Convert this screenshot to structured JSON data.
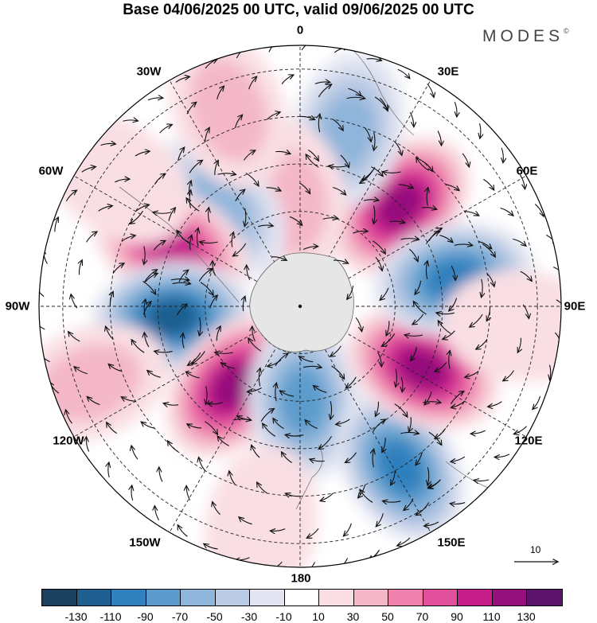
{
  "title": "Base 04/06/2025 00 UTC, valid 09/06/2025 00 UTC",
  "brand": {
    "name": "MODES",
    "mark": "©"
  },
  "longitude_labels": [
    "0",
    "30E",
    "60E",
    "90E",
    "120E",
    "150E",
    "180",
    "150W",
    "120W",
    "90W",
    "60W",
    "30W"
  ],
  "reference_vector": {
    "label": "10"
  },
  "colorbar": {
    "colors": [
      "#1b3f5e",
      "#1f5f8f",
      "#2f80bd",
      "#5b9ccc",
      "#8fb5da",
      "#bccbe4",
      "#e2e5f1",
      "#ffffff",
      "#f9dfe4",
      "#f4b7c7",
      "#ee82ad",
      "#e2509c",
      "#c71e8c",
      "#94117c",
      "#5b136b"
    ],
    "tick_labels": [
      "-130",
      "-110",
      "-90",
      "-70",
      "-50",
      "-30",
      "-10",
      "10",
      "30",
      "50",
      "70",
      "90",
      "110",
      "130"
    ]
  },
  "anomaly_field": {
    "units_shown": "none",
    "centers": [
      {
        "lon": 45,
        "colat": 30,
        "value": 120
      },
      {
        "lon": 15,
        "colat": 38,
        "value": -70
      },
      {
        "lon": 355,
        "colat": 22,
        "value": 45
      },
      {
        "lon": 320,
        "colat": 27,
        "value": -70
      },
      {
        "lon": 295,
        "colat": 30,
        "value": 110
      },
      {
        "lon": 265,
        "colat": 27,
        "value": -130
      },
      {
        "lon": 220,
        "colat": 22,
        "value": 125
      },
      {
        "lon": 178,
        "colat": 20,
        "value": -85
      },
      {
        "lon": 148,
        "colat": 40,
        "value": -100
      },
      {
        "lon": 117,
        "colat": 29,
        "value": 125
      },
      {
        "lon": 80,
        "colat": 33,
        "value": -110
      },
      {
        "lon": 250,
        "colat": 47,
        "value": 40
      },
      {
        "lon": 305,
        "colat": 47,
        "value": 35
      },
      {
        "lon": 190,
        "colat": 47,
        "value": 35
      },
      {
        "lon": 340,
        "colat": 44,
        "value": 40
      },
      {
        "lon": 95,
        "colat": 47,
        "value": 30
      }
    ]
  }
}
